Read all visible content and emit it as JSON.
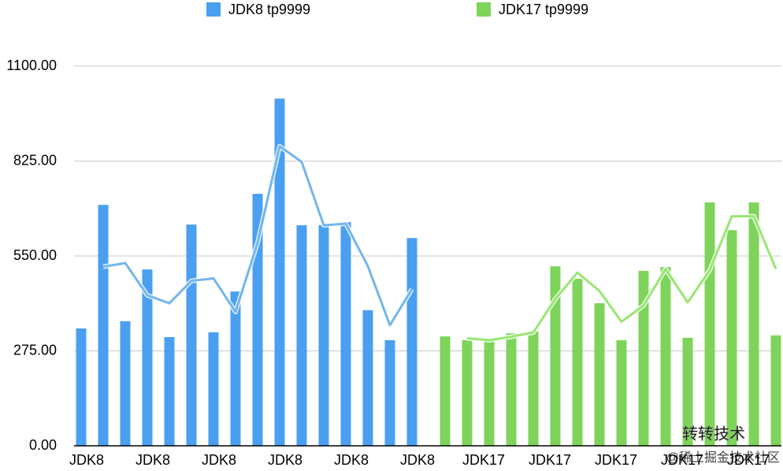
{
  "chart_data": {
    "type": "bar",
    "categories": [
      "JDK8",
      null,
      null,
      "JDK8",
      null,
      null,
      "JDK8",
      null,
      null,
      "JDK8",
      null,
      null,
      "JDK8",
      null,
      null,
      "JDK8",
      null,
      null,
      "JDK17",
      null,
      null,
      "JDK17",
      null,
      null,
      "JDK17",
      null,
      null,
      "JDK17",
      null,
      null,
      "JDK17",
      null
    ],
    "series": [
      {
        "name": "JDK8 tp9999",
        "color": "#4a9ff0",
        "trend_color": "#72b6ee",
        "values": [
          340,
          698,
          361,
          511,
          315,
          641,
          329,
          447,
          730,
          1006,
          639,
          639,
          648,
          393,
          306,
          602,
          null,
          null,
          null,
          null,
          null,
          null,
          null,
          null,
          null,
          null,
          null,
          null,
          null,
          null,
          null,
          null
        ]
      },
      {
        "name": "JDK17 tp9999",
        "color": "#7ed45a",
        "trend_color": "#98e672",
        "values": [
          null,
          null,
          null,
          null,
          null,
          null,
          null,
          null,
          null,
          null,
          null,
          null,
          null,
          null,
          null,
          null,
          317,
          306,
          306,
          326,
          331,
          520,
          484,
          413,
          306,
          507,
          518,
          313,
          705,
          625,
          705,
          320
        ]
      }
    ],
    "trendline": "moving-average",
    "ylim": [
      0,
      1100
    ],
    "yticks": [
      {
        "value": 0,
        "label": "0.00"
      },
      {
        "value": 275,
        "label": "275.00"
      },
      {
        "value": 550,
        "label": "550.00"
      },
      {
        "value": 825,
        "label": "825.00"
      },
      {
        "value": 1100,
        "label": "1100.00"
      }
    ],
    "grid": true,
    "legend": "top",
    "watermark": [
      "转转技术",
      "@稀土掘金技术社区"
    ]
  }
}
